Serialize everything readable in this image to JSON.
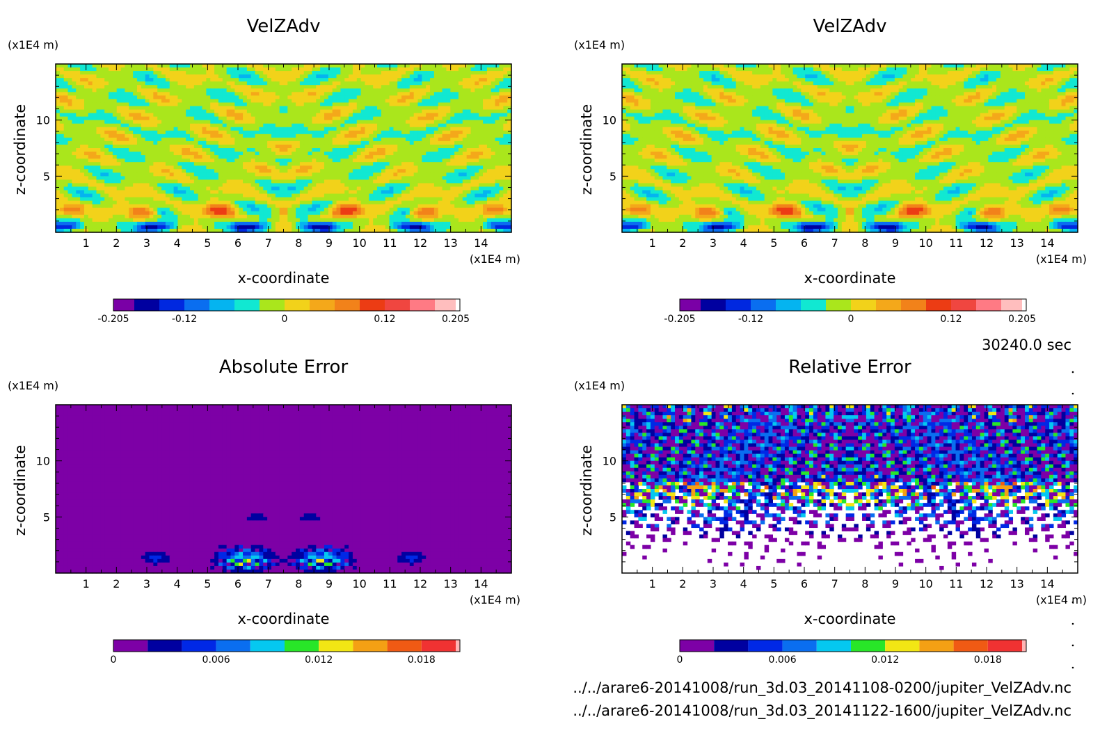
{
  "footer": {
    "time": "30240.0 sec",
    "file1": "../../arare6-20141008/run_3d.03_20141108-0200/jupiter_VelZAdv.nc",
    "file2": "../../arare6-20141008/run_3d.03_20141122-1600/jupiter_VelZAdv.nc"
  },
  "chart_data": [
    {
      "type": "heatmap",
      "title": "VelZAdv",
      "xlabel": "x-coordinate",
      "ylabel": "z-coordinate",
      "x_unit": "(x1E4 m)",
      "y_unit": "(x1E4 m)",
      "xlim": [
        0,
        15
      ],
      "ylim": [
        0,
        15
      ],
      "xticks": [
        1,
        2,
        3,
        4,
        5,
        6,
        7,
        8,
        9,
        10,
        11,
        12,
        13,
        14
      ],
      "yticks": [
        5,
        10
      ],
      "field": "velzadv",
      "colorbar": {
        "levels": [
          -0.205,
          -0.18,
          -0.15,
          -0.12,
          -0.09,
          -0.06,
          -0.03,
          0,
          0.03,
          0.06,
          0.09,
          0.12,
          0.15,
          0.18,
          0.205
        ],
        "colors": [
          "#7a00a6",
          "#0000a0",
          "#0028e0",
          "#0a6ef0",
          "#05b4f0",
          "#11e8d2",
          "#aae61c",
          "#f2d21a",
          "#f4a81a",
          "#f2821a",
          "#ec3c14",
          "#f04640",
          "#ff7a84",
          "#ffbebe"
        ],
        "tick_values": [
          -0.205,
          -0.12,
          0,
          0.12,
          0.205
        ],
        "tick_labels": [
          "-0.205",
          "-0.12",
          "0",
          "0.12",
          "0.205"
        ]
      }
    },
    {
      "type": "heatmap",
      "title": "VelZAdv",
      "xlabel": "x-coordinate",
      "ylabel": "z-coordinate",
      "x_unit": "(x1E4 m)",
      "y_unit": "(x1E4 m)",
      "xlim": [
        0,
        15
      ],
      "ylim": [
        0,
        15
      ],
      "xticks": [
        1,
        2,
        3,
        4,
        5,
        6,
        7,
        8,
        9,
        10,
        11,
        12,
        13,
        14
      ],
      "yticks": [
        5,
        10
      ],
      "field": "velzadv",
      "colorbar": {
        "levels": [
          -0.205,
          -0.18,
          -0.15,
          -0.12,
          -0.09,
          -0.06,
          -0.03,
          0,
          0.03,
          0.06,
          0.09,
          0.12,
          0.15,
          0.18,
          0.205
        ],
        "colors": [
          "#7a00a6",
          "#0000a0",
          "#0028e0",
          "#0a6ef0",
          "#05b4f0",
          "#11e8d2",
          "#aae61c",
          "#f2d21a",
          "#f4a81a",
          "#f2821a",
          "#ec3c14",
          "#f04640",
          "#ff7a84",
          "#ffbebe"
        ],
        "tick_values": [
          -0.205,
          -0.12,
          0,
          0.12,
          0.205
        ],
        "tick_labels": [
          "-0.205",
          "-0.12",
          "0",
          "0.12",
          "0.205"
        ]
      }
    },
    {
      "type": "heatmap",
      "title": "Absolute Error",
      "xlabel": "x-coordinate",
      "ylabel": "z-coordinate",
      "x_unit": "(x1E4 m)",
      "y_unit": "(x1E4 m)",
      "xlim": [
        0,
        15
      ],
      "ylim": [
        0,
        15
      ],
      "xticks": [
        1,
        2,
        3,
        4,
        5,
        6,
        7,
        8,
        9,
        10,
        11,
        12,
        13,
        14
      ],
      "yticks": [
        5,
        10
      ],
      "field": "abserr",
      "colorbar": {
        "levels": [
          0,
          0.002,
          0.004,
          0.006,
          0.008,
          0.01,
          0.012,
          0.014,
          0.016,
          0.018,
          0.02
        ],
        "colors": [
          "#7d00a6",
          "#0000a0",
          "#0028e6",
          "#0a6ef0",
          "#05c8f0",
          "#28e628",
          "#f2e614",
          "#f4a014",
          "#f05a14",
          "#f03232",
          "#ffb4b4"
        ],
        "tick_values": [
          0,
          0.006,
          0.012,
          0.018
        ],
        "tick_labels": [
          "0",
          "0.006",
          "0.012",
          "0.018"
        ]
      }
    },
    {
      "type": "heatmap",
      "title": "Relative Error",
      "xlabel": "x-coordinate",
      "ylabel": "z-coordinate",
      "x_unit": "(x1E4 m)",
      "y_unit": "(x1E4 m)",
      "xlim": [
        0,
        15
      ],
      "ylim": [
        0,
        15
      ],
      "xticks": [
        1,
        2,
        3,
        4,
        5,
        6,
        7,
        8,
        9,
        10,
        11,
        12,
        13,
        14
      ],
      "yticks": [
        5,
        10
      ],
      "field": "relerr",
      "colorbar": {
        "levels": [
          0,
          0.002,
          0.004,
          0.006,
          0.008,
          0.01,
          0.012,
          0.014,
          0.016,
          0.018,
          0.02
        ],
        "colors": [
          "#7d00a6",
          "#0000a0",
          "#0028e6",
          "#0a6ef0",
          "#05c8f0",
          "#28e628",
          "#f2e614",
          "#f4a014",
          "#f05a14",
          "#f03232",
          "#ffb4b4"
        ],
        "tick_values": [
          0,
          0.006,
          0.012,
          0.018
        ],
        "tick_labels": [
          "0",
          "0.006",
          "0.012",
          "0.018"
        ]
      }
    }
  ]
}
